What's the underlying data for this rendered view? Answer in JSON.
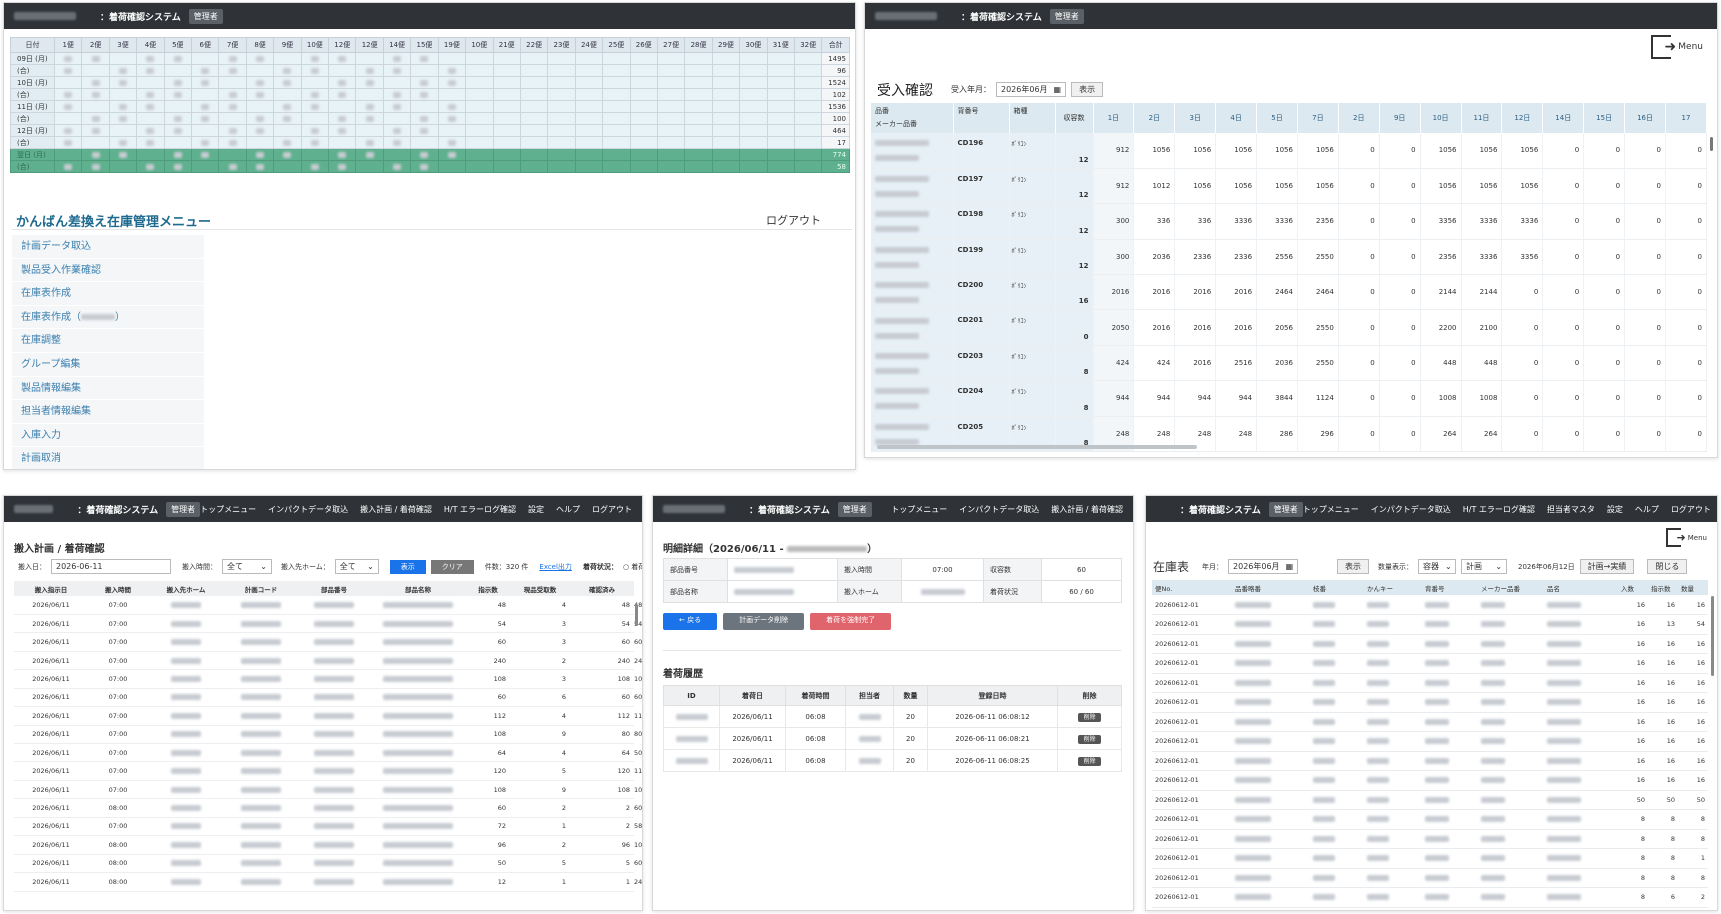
{
  "app": {
    "system_title": "：着荷確認システム",
    "role_badge": "管理者"
  },
  "panel1": {
    "columns": [
      "日付",
      "1便",
      "2便",
      "3便",
      "4便",
      "5便",
      "6便",
      "7便",
      "8便",
      "9便",
      "10便",
      "12便",
      "12便",
      "14便",
      "15便",
      "19便",
      "10便",
      "21便",
      "22便",
      "23便",
      "24便",
      "25便",
      "26便",
      "27便",
      "28便",
      "29便",
      "30便",
      "31便",
      "32便",
      "合計"
    ],
    "rows": [
      {
        "label": "09日 (月)",
        "total": "1495",
        "hl": false
      },
      {
        "label": "(合)",
        "total": "96",
        "hl": false
      },
      {
        "label": "10日 (月)",
        "total": "1524",
        "hl": false
      },
      {
        "label": "(合)",
        "total": "102",
        "hl": false
      },
      {
        "label": "11日 (月)",
        "total": "1536",
        "hl": false
      },
      {
        "label": "(合)",
        "total": "100",
        "hl": false
      },
      {
        "label": "12日 (月)",
        "total": "464",
        "hl": false
      },
      {
        "label": "(合)",
        "total": "17",
        "hl": false
      },
      {
        "label": "翌日 (月)",
        "total": "774",
        "hl": true
      },
      {
        "label": "(合)",
        "total": "58",
        "hl": true
      }
    ],
    "menu_title": "かんばん差換え在庫管理メニュー",
    "logout": "ログアウト",
    "menu_items": [
      "計画データ取込",
      "製品受入作業確認",
      "在庫表作成",
      "在庫表作成（",
      "在庫調整",
      "グループ編集",
      "製品情報編集",
      "担当者情報編集",
      "入庫入力",
      "計画取消"
    ],
    "menu_item_suffix": "）"
  },
  "panel2": {
    "menu_label": "Menu",
    "title": "受入確認",
    "month_label": "受入年月：",
    "month_value": "2026年06月",
    "show_btn": "表示",
    "head_part": "品番",
    "head_maker": "メーカー品番",
    "head_code": "背番号",
    "head_kind": "箱種",
    "head_count": "収容数",
    "days": [
      "1日",
      "2日",
      "3日",
      "4日",
      "5日",
      "7日",
      "2日",
      "9日",
      "10日",
      "11日",
      "12日",
      "14日",
      "15日",
      "16日",
      "17"
    ],
    "rows": [
      {
        "code": "CD196",
        "kind": "ﾎﾟﾘｺﾝ",
        "count": "12",
        "vals": [
          "912",
          "1056",
          "1056",
          "1056",
          "1056",
          "1056",
          "0",
          "0",
          "1056",
          "1056",
          "1056",
          "0",
          "0",
          "0",
          "0"
        ]
      },
      {
        "code": "CD197",
        "kind": "ﾎﾟﾘｺﾝ",
        "count": "12",
        "vals": [
          "912",
          "1012",
          "1056",
          "1056",
          "1056",
          "1056",
          "0",
          "0",
          "1056",
          "1056",
          "1056",
          "0",
          "0",
          "0",
          "0"
        ]
      },
      {
        "code": "CD198",
        "kind": "ﾎﾟﾘｺﾝ",
        "count": "12",
        "vals": [
          "300",
          "336",
          "336",
          "3336",
          "3336",
          "2356",
          "0",
          "0",
          "3356",
          "3336",
          "3336",
          "0",
          "0",
          "0",
          "0"
        ]
      },
      {
        "code": "CD199",
        "kind": "ﾎﾟﾘｺﾝ",
        "count": "12",
        "vals": [
          "300",
          "2036",
          "2336",
          "2336",
          "2556",
          "2550",
          "0",
          "0",
          "2356",
          "3336",
          "3356",
          "0",
          "0",
          "0",
          "0"
        ]
      },
      {
        "code": "CD200",
        "kind": "ﾎﾟﾘｺﾝ",
        "count": "16",
        "vals": [
          "2016",
          "2016",
          "2016",
          "2016",
          "2464",
          "2464",
          "0",
          "0",
          "2144",
          "2144",
          "0",
          "0",
          "0",
          "0",
          "0"
        ]
      },
      {
        "code": "CD201",
        "kind": "ﾎﾟﾘｺﾝ",
        "count": "0",
        "vals": [
          "2050",
          "2016",
          "2016",
          "2016",
          "2056",
          "2550",
          "0",
          "0",
          "2200",
          "2100",
          "0",
          "0",
          "0",
          "0",
          "0"
        ]
      },
      {
        "code": "CD203",
        "kind": "ﾎﾟﾘｺﾝ",
        "count": "8",
        "vals": [
          "424",
          "424",
          "2016",
          "2516",
          "2036",
          "2550",
          "0",
          "0",
          "448",
          "448",
          "0",
          "0",
          "0",
          "0",
          "0"
        ]
      },
      {
        "code": "CD204",
        "kind": "ﾎﾟﾘｺﾝ",
        "count": "8",
        "vals": [
          "944",
          "944",
          "944",
          "944",
          "3844",
          "1124",
          "0",
          "0",
          "1008",
          "1008",
          "0",
          "0",
          "0",
          "0",
          "0"
        ]
      },
      {
        "code": "CD205",
        "kind": "ﾎﾟﾘｺﾝ",
        "count": "8",
        "vals": [
          "248",
          "248",
          "248",
          "248",
          "286",
          "296",
          "0",
          "0",
          "264",
          "264",
          "0",
          "0",
          "0",
          "0",
          "0"
        ]
      }
    ]
  },
  "panel3": {
    "nav": [
      "トップメニュー",
      "インパクトデータ取込",
      "搬入計画 / 着荷確認",
      "H/T エラーログ確認",
      "設定",
      "ヘルプ",
      "ログアウト"
    ],
    "title": "搬入計画 / 着荷確認",
    "date_label": "搬入日：",
    "date_value": "2026-06-11",
    "time_label": "搬入時間：",
    "time_value": "全て",
    "home_label": "搬入先ホーム：",
    "home_value": "全て",
    "show_btn": "表示",
    "clear_btn": "クリア",
    "count_text": "件数：320 件",
    "excel_link": "Excel出力",
    "status_label": "着荷状況：",
    "status_option": "着荷済み",
    "columns": [
      "搬入指示日",
      "搬入時間",
      "搬入先ホーム",
      "計画コード",
      "部品番号",
      "部品名称",
      "指示数",
      "現品受取数",
      "確認済み"
    ],
    "rows": [
      [
        "2026/06/11",
        "07:00",
        "48",
        "4",
        "48",
        "48"
      ],
      [
        "2026/06/11",
        "07:00",
        "54",
        "3",
        "54",
        "54"
      ],
      [
        "2026/06/11",
        "07:00",
        "60",
        "3",
        "60",
        "60"
      ],
      [
        "2026/06/11",
        "07:00",
        "240",
        "2",
        "240",
        "240"
      ],
      [
        "2026/06/11",
        "07:00",
        "108",
        "3",
        "108",
        "108"
      ],
      [
        "2026/06/11",
        "07:00",
        "60",
        "6",
        "60",
        "60"
      ],
      [
        "2026/06/11",
        "07:00",
        "112",
        "4",
        "112",
        "112"
      ],
      [
        "2026/06/11",
        "07:00",
        "108",
        "9",
        "80",
        "80"
      ],
      [
        "2026/06/11",
        "07:00",
        "64",
        "4",
        "64",
        "50"
      ],
      [
        "2026/06/11",
        "07:00",
        "120",
        "5",
        "120",
        "112"
      ],
      [
        "2026/06/11",
        "07:00",
        "108",
        "9",
        "108",
        "108"
      ],
      [
        "2026/06/11",
        "08:00",
        "60",
        "2",
        "2",
        "60"
      ],
      [
        "2026/06/11",
        "07:00",
        "72",
        "1",
        "2",
        "58"
      ],
      [
        "2026/06/11",
        "08:00",
        "96",
        "2",
        "96",
        "108"
      ],
      [
        "2026/06/11",
        "08:00",
        "50",
        "5",
        "5",
        "60"
      ],
      [
        "2026/06/11",
        "08:00",
        "12",
        "1",
        "1",
        "24"
      ]
    ]
  },
  "panel4": {
    "nav": [
      "トップメニュー",
      "インパクトデータ取込",
      "搬入計画 / 着荷確認"
    ],
    "title_prefix": "明細詳細（2026/06/11 -",
    "title_suffix": "）",
    "info": {
      "part_no_label": "部品番号",
      "part_name_label": "部品名称",
      "time_label": "搬入時間",
      "time_value": "07:00",
      "home_label": "搬入ホーム",
      "cap_label": "収容数",
      "cap_value": "60",
      "status_label": "着荷状況",
      "status_value": "60 / 60"
    },
    "back_btn": "← 戻る",
    "delete_btn": "計画データ削除",
    "force_btn": "着荷を強制完了",
    "history_title": "着荷履歴",
    "columns": [
      "ID",
      "着荷日",
      "着荷時間",
      "担当者",
      "数量",
      "登録日時",
      "削除"
    ],
    "rows": [
      {
        "date": "2026/06/11",
        "time": "06:08",
        "qty": "20",
        "reg": "2026-06-11 06:08:12"
      },
      {
        "date": "2026/06/11",
        "time": "06:08",
        "qty": "20",
        "reg": "2026-06-11 06:08:21"
      },
      {
        "date": "2026/06/11",
        "time": "06:08",
        "qty": "20",
        "reg": "2026-06-11 06:08:25"
      }
    ],
    "del_label": "削除"
  },
  "panel5": {
    "nav": [
      "トップメニュー",
      "インパクトデータ取込",
      "H/T エラーログ確認",
      "担当者マスタ",
      "設定",
      "ヘルプ",
      "ログアウト"
    ],
    "menu_label": "Menu",
    "title": "在庫表",
    "year_label": "年月：",
    "year_value": "2026年06月",
    "show_btn": "表示",
    "qty_label": "数量表示：",
    "qty_value": "容器",
    "plan_value": "計画",
    "date_text": "2026年06月12日",
    "plan_btn": "計画→実績",
    "close_btn": "閉じる",
    "columns": [
      "便No.",
      "品番略番",
      "枝番",
      "かんキー",
      "背番号",
      "メーカー品番",
      "品名",
      "入数",
      "指示数",
      "数量"
    ],
    "rows": [
      [
        "20260612-01",
        "16",
        "16",
        "16"
      ],
      [
        "20260612-01",
        "16",
        "13",
        "54"
      ],
      [
        "20260612-01",
        "16",
        "16",
        "16"
      ],
      [
        "20260612-01",
        "16",
        "16",
        "16"
      ],
      [
        "20260612-01",
        "16",
        "16",
        "16"
      ],
      [
        "20260612-01",
        "16",
        "16",
        "16"
      ],
      [
        "20260612-01",
        "16",
        "16",
        "16"
      ],
      [
        "20260612-01",
        "16",
        "16",
        "16"
      ],
      [
        "20260612-01",
        "16",
        "16",
        "16"
      ],
      [
        "20260612-01",
        "16",
        "16",
        "16"
      ],
      [
        "20260612-01",
        "50",
        "50",
        "50"
      ],
      [
        "20260612-01",
        "8",
        "8",
        "8"
      ],
      [
        "20260612-01",
        "8",
        "8",
        "8"
      ],
      [
        "20260612-01",
        "8",
        "8",
        "1"
      ],
      [
        "20260612-01",
        "8",
        "8",
        "8"
      ],
      [
        "20260612-01",
        "8",
        "6",
        "2"
      ]
    ]
  }
}
